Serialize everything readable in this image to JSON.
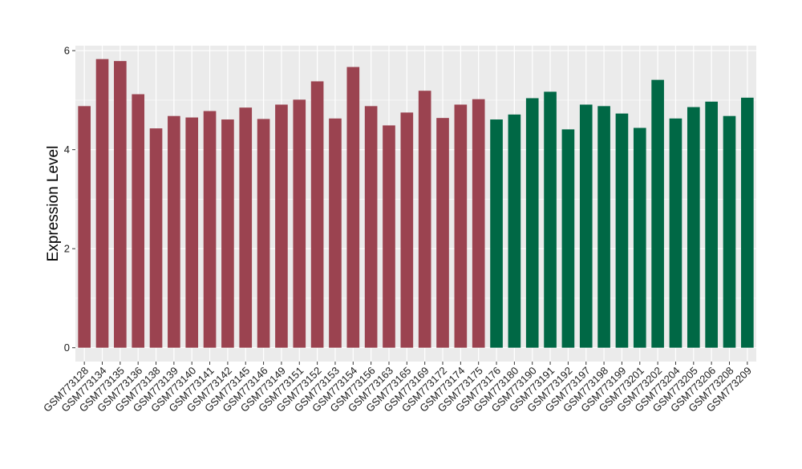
{
  "chart_data": {
    "type": "bar",
    "ylabel": "Expression Level",
    "xlabel": "",
    "ylim": [
      -0.28,
      6.1
    ],
    "y_ticks": [
      0,
      2,
      4,
      6
    ],
    "y_tick_labels": [
      "0",
      "2",
      "4",
      "6"
    ],
    "grid": true,
    "legend": "none",
    "colors": {
      "group_1": "#9b4350",
      "group_2": "#006845",
      "panel_bg": "#ebebeb",
      "grid": "#ffffff"
    },
    "categories": [
      "GSM773128",
      "GSM773134",
      "GSM773135",
      "GSM773136",
      "GSM773138",
      "GSM773139",
      "GSM773140",
      "GSM773141",
      "GSM773142",
      "GSM773145",
      "GSM773146",
      "GSM773149",
      "GSM773151",
      "GSM773152",
      "GSM773153",
      "GSM773154",
      "GSM773156",
      "GSM773163",
      "GSM773165",
      "GSM773169",
      "GSM773172",
      "GSM773174",
      "GSM773175",
      "GSM773176",
      "GSM773180",
      "GSM773190",
      "GSM773191",
      "GSM773192",
      "GSM773197",
      "GSM773198",
      "GSM773199",
      "GSM773201",
      "GSM773202",
      "GSM773204",
      "GSM773205",
      "GSM773206",
      "GSM773208",
      "GSM773209"
    ],
    "values": [
      4.88,
      5.83,
      5.79,
      5.12,
      4.43,
      4.68,
      4.65,
      4.78,
      4.61,
      4.85,
      4.62,
      4.91,
      5.01,
      5.38,
      4.63,
      5.67,
      4.88,
      4.49,
      4.75,
      5.19,
      4.64,
      4.91,
      5.02,
      4.61,
      4.71,
      5.04,
      5.17,
      4.41,
      4.91,
      4.88,
      4.73,
      4.44,
      5.41,
      4.63,
      4.86,
      4.97,
      4.68,
      5.05
    ],
    "groups": [
      1,
      1,
      1,
      1,
      1,
      1,
      1,
      1,
      1,
      1,
      1,
      1,
      1,
      1,
      1,
      1,
      1,
      1,
      1,
      1,
      1,
      1,
      1,
      2,
      2,
      2,
      2,
      2,
      2,
      2,
      2,
      2,
      2,
      2,
      2,
      2,
      2,
      2
    ]
  }
}
